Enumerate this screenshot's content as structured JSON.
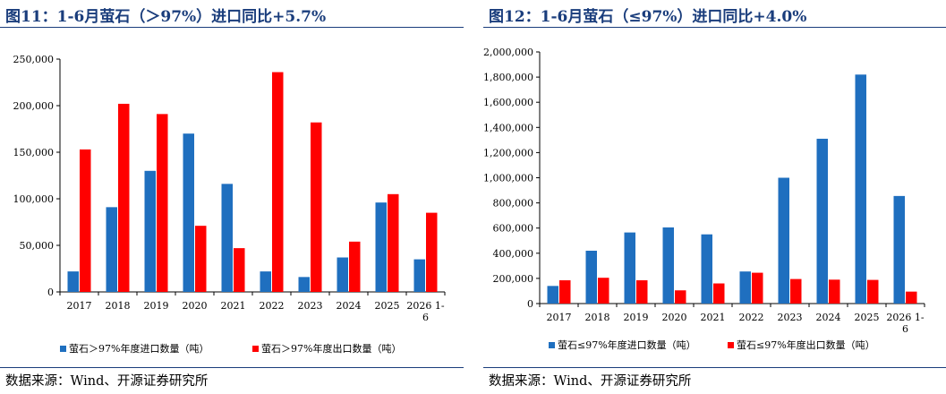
{
  "colors": {
    "import": "#1f6fbf",
    "export": "#ff0000",
    "title": "#1a3d7c"
  },
  "charts": [
    {
      "title": "图11：1-6月萤石（＞97%）进口同比+5.7%",
      "source": "数据来源：Wind、开源证券研究所",
      "chart_data": {
        "type": "bar",
        "categories": [
          "2017",
          "2018",
          "2019",
          "2020",
          "2021",
          "2022",
          "2023",
          "2024",
          "2025",
          "2026 1-6"
        ],
        "category_lines": [
          [
            "2017"
          ],
          [
            "2018"
          ],
          [
            "2019"
          ],
          [
            "2020"
          ],
          [
            "2021"
          ],
          [
            "2022"
          ],
          [
            "2023"
          ],
          [
            "2024"
          ],
          [
            "2025"
          ],
          [
            "2026 1-",
            "6"
          ]
        ],
        "series": [
          {
            "name": "萤石＞97%年度进口数量（吨）",
            "values": [
              22000,
              91000,
              130000,
              170000,
              116000,
              22000,
              16000,
              37000,
              96000,
              35000
            ]
          },
          {
            "name": "萤石＞97%年度出口数量（吨）",
            "values": [
              153000,
              202000,
              191000,
              71000,
              47000,
              236000,
              182000,
              54000,
              105000,
              85000
            ]
          }
        ],
        "ylim": [
          0,
          250000
        ],
        "yticks": [
          0,
          50000,
          100000,
          150000,
          200000,
          250000
        ],
        "ytick_labels": [
          "0",
          "50,000",
          "100,000",
          "150,000",
          "200,000",
          "250,000"
        ],
        "grid": false,
        "legend": "bottom"
      }
    },
    {
      "title": "图12：1-6月萤石（≤97%）进口同比+4.0%",
      "source": "数据来源：Wind、开源证券研究所",
      "chart_data": {
        "type": "bar",
        "categories": [
          "2017",
          "2018",
          "2019",
          "2020",
          "2021",
          "2022",
          "2023",
          "2024",
          "2025",
          "2026 1-6"
        ],
        "category_lines": [
          [
            "2017"
          ],
          [
            "2018"
          ],
          [
            "2019"
          ],
          [
            "2020"
          ],
          [
            "2021"
          ],
          [
            "2022"
          ],
          [
            "2023"
          ],
          [
            "2024"
          ],
          [
            "2025"
          ],
          [
            "2026 1-",
            "6"
          ]
        ],
        "series": [
          {
            "name": "萤石≤97%年度进口数量（吨）",
            "values": [
              140000,
              420000,
              565000,
              605000,
              550000,
              255000,
              1000000,
              1310000,
              1820000,
              855000
            ]
          },
          {
            "name": "萤石≤97%年度出口数量（吨）",
            "values": [
              185000,
              205000,
              185000,
              105000,
              160000,
              245000,
              195000,
              190000,
              188000,
              95000
            ]
          }
        ],
        "ylim": [
          0,
          2000000
        ],
        "yticks": [
          0,
          200000,
          400000,
          600000,
          800000,
          1000000,
          1200000,
          1400000,
          1600000,
          1800000,
          2000000
        ],
        "ytick_labels": [
          "0",
          "200,000",
          "400,000",
          "600,000",
          "800,000",
          "1,000,000",
          "1,200,000",
          "1,400,000",
          "1,600,000",
          "1,800,000",
          "2,000,000"
        ],
        "grid": false,
        "legend": "bottom"
      }
    }
  ]
}
